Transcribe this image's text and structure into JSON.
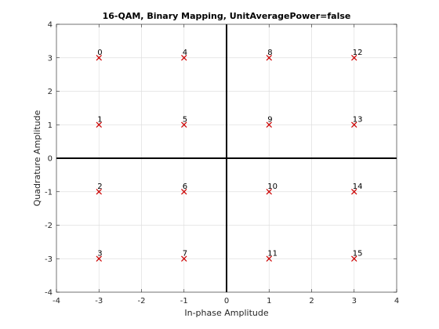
{
  "chart_data": {
    "type": "scatter",
    "title": "16-QAM, Binary Mapping, UnitAveragePower=false",
    "xlabel": "In-phase Amplitude",
    "ylabel": "Quadrature Amplitude",
    "xlim": [
      -4,
      4
    ],
    "ylim": [
      -4,
      4
    ],
    "xticks": [
      -4,
      -3,
      -2,
      -1,
      0,
      1,
      2,
      3,
      4
    ],
    "yticks": [
      -4,
      -3,
      -2,
      -1,
      0,
      1,
      2,
      3,
      4
    ],
    "grid": true,
    "marker": "x",
    "marker_color": "#cc0000",
    "axis_line_color": "#000000",
    "points": [
      {
        "label": "0",
        "x": -3,
        "y": 3
      },
      {
        "label": "1",
        "x": -3,
        "y": 1
      },
      {
        "label": "2",
        "x": -3,
        "y": -1
      },
      {
        "label": "3",
        "x": -3,
        "y": -3
      },
      {
        "label": "4",
        "x": -1,
        "y": 3
      },
      {
        "label": "5",
        "x": -1,
        "y": 1
      },
      {
        "label": "6",
        "x": -1,
        "y": -1
      },
      {
        "label": "7",
        "x": -1,
        "y": -3
      },
      {
        "label": "8",
        "x": 1,
        "y": 3
      },
      {
        "label": "9",
        "x": 1,
        "y": 1
      },
      {
        "label": "10",
        "x": 1,
        "y": -1
      },
      {
        "label": "11",
        "x": 1,
        "y": -3
      },
      {
        "label": "12",
        "x": 3,
        "y": 3
      },
      {
        "label": "13",
        "x": 3,
        "y": 1
      },
      {
        "label": "14",
        "x": 3,
        "y": -1
      },
      {
        "label": "15",
        "x": 3,
        "y": -3
      }
    ]
  }
}
